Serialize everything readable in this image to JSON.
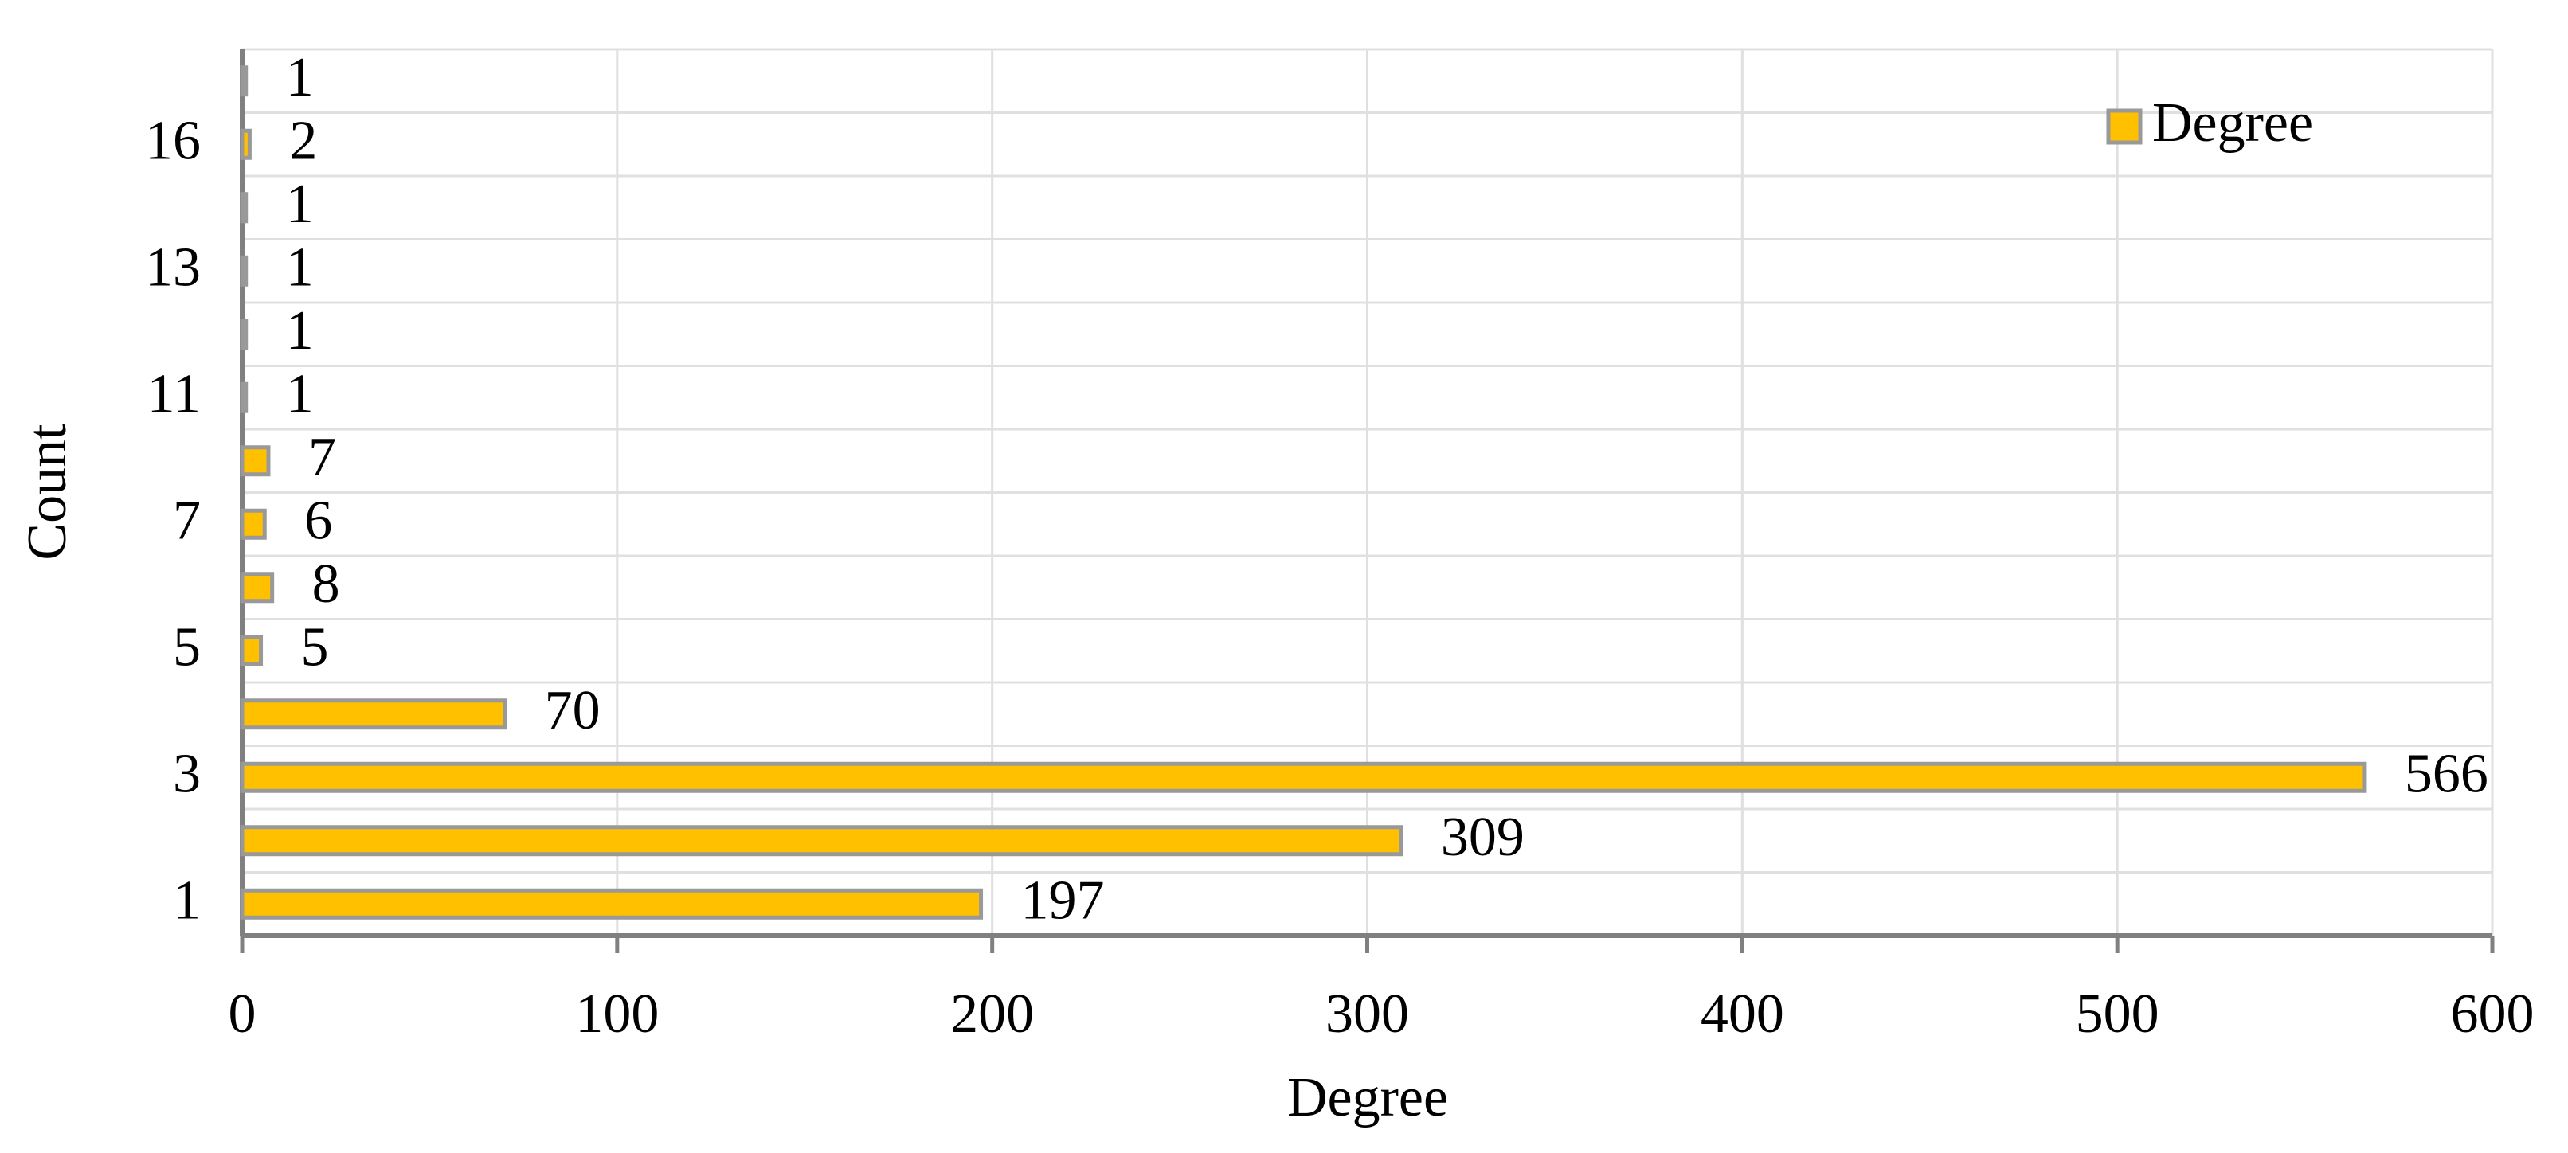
{
  "chart_data": {
    "type": "bar",
    "orientation": "horizontal",
    "x_label": "Degree",
    "y_label": "Count",
    "categories": [
      "1",
      null,
      "3",
      null,
      "5",
      null,
      "7",
      null,
      "11",
      null,
      "13",
      null,
      "16",
      null
    ],
    "series": [
      {
        "name": "Degree",
        "color": "#ffc000",
        "values": [
          197,
          309,
          566,
          70,
          5,
          8,
          6,
          7,
          1,
          1,
          1,
          1,
          2,
          1
        ]
      }
    ],
    "xlim": [
      0,
      600
    ],
    "xticks": [
      0,
      100,
      200,
      300,
      400,
      500,
      600
    ],
    "grid": true,
    "legend": "upper right"
  }
}
